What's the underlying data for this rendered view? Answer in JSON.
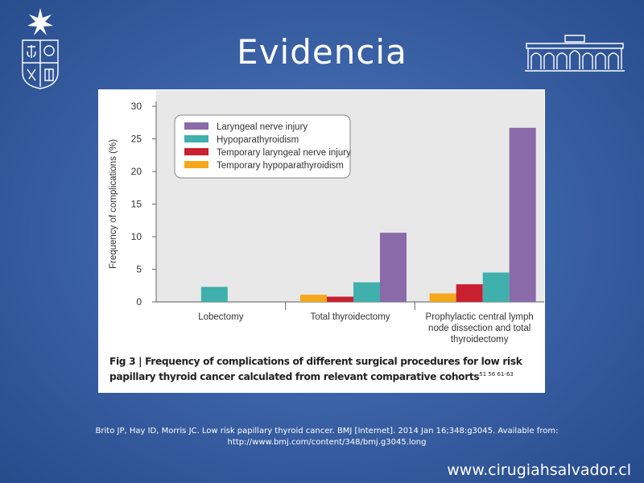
{
  "slide": {
    "title": "Evidencia",
    "reference_line1": "Brito JP, Hay ID, Morris JC. Low risk papillary thyroid cancer. BMJ [Internet]. 2014 Jan 16;348:g3045. Available from:",
    "reference_line2": "http://www.bmj.com/content/348/bmj.g3045.long",
    "website": "www.cirugiahsalvador.cl",
    "logo_left_icon": "university-seal-icon",
    "logo_right_icon": "hospital-building-icon"
  },
  "colors": {
    "background": "#3d63a8",
    "laryngeal": "#8a6aa8",
    "hypopara": "#3fb0ac",
    "temp_laryngeal": "#c8202f",
    "temp_hypopara": "#f5a81c"
  },
  "chart_data": {
    "type": "bar",
    "title": "Frequency of complications of different surgical procedures for low risk papillary thyroid cancer calculated from relevant comparative cohorts",
    "fig_label": "Fig 3",
    "citations": "51  56  61-63",
    "ylabel": "Frequency of complications (%)",
    "xlabel": "",
    "ylim": [
      0,
      30
    ],
    "yticks": [
      0,
      5,
      10,
      15,
      20,
      25,
      30
    ],
    "grid": false,
    "legend_position": "top-left",
    "categories": [
      "Lobectomy",
      "Total thyroidectomy",
      "Prophylactic central lymph node dissection and total thyroidectomy"
    ],
    "category_lines": [
      [
        "Lobectomy"
      ],
      [
        "Total thyroidectomy"
      ],
      [
        "Prophylactic central lymph",
        "node dissection and total",
        "thyroidectomy"
      ]
    ],
    "series": [
      {
        "name": "Temporary hypoparathyroidism",
        "color": "#f5a81c",
        "values": [
          null,
          1.1,
          1.3
        ]
      },
      {
        "name": "Temporary laryngeal nerve injury",
        "color": "#c8202f",
        "values": [
          null,
          0.8,
          2.7
        ]
      },
      {
        "name": "Hypoparathyroidism",
        "color": "#3fb0ac",
        "values": [
          2.3,
          3.0,
          4.5
        ]
      },
      {
        "name": "Laryngeal nerve injury",
        "color": "#8a6aa8",
        "values": [
          null,
          10.6,
          26.7
        ]
      }
    ],
    "legend_order": [
      "Laryngeal nerve injury",
      "Hypoparathyroidism",
      "Temporary laryngeal nerve injury",
      "Temporary hypoparathyroidism"
    ]
  }
}
